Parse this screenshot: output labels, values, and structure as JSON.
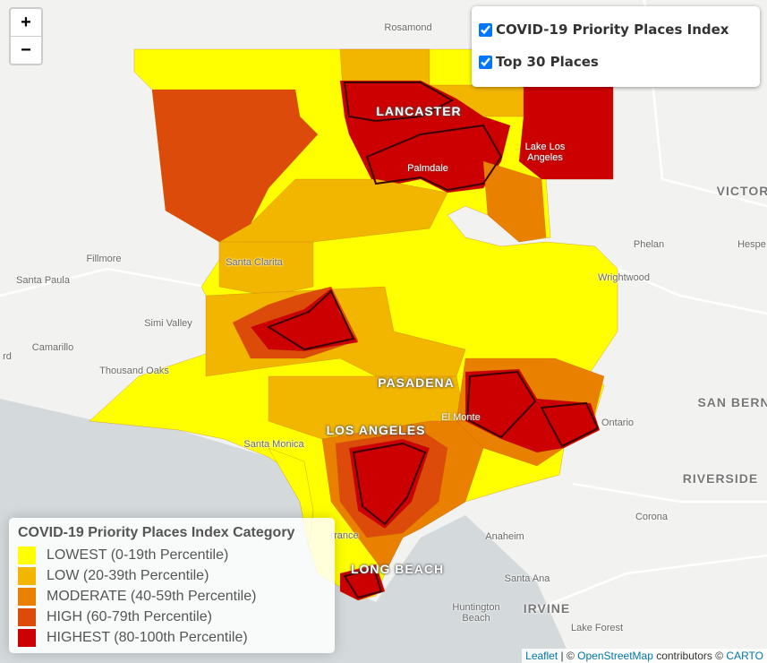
{
  "zoom_controls": [
    "+",
    "−"
  ],
  "layers": [
    {
      "label": "COVID-19 Priority Places Index",
      "checked": true
    },
    {
      "label": "Top 30 Places",
      "checked": true
    }
  ],
  "legend": {
    "title": "COVID-19 Priority Places Index Category",
    "items": [
      {
        "label": "LOWEST (0-19th Percentile)",
        "color": "#ffff00"
      },
      {
        "label": "LOW (20-39th Percentile)",
        "color": "#f2b600"
      },
      {
        "label": "MODERATE (40-59th Percentile)",
        "color": "#ea8000"
      },
      {
        "label": "HIGH (60-79th Percentile)",
        "color": "#dd4b0b"
      },
      {
        "label": "HIGHEST (80-100th Percentile)",
        "color": "#cc0000"
      }
    ]
  },
  "map_labels": [
    "Rosamond",
    "LANCASTER",
    "Palmdale",
    "Lake Los Angeles",
    "VICTOR",
    "Phelan",
    "Hespe",
    "Wrightwood",
    "Fillmore",
    "Santa Clarita",
    "Santa Paula",
    "Simi Valley",
    "Camarillo",
    "rd",
    "Thousand Oaks",
    "PASADENA",
    "El Monte",
    "Ontario",
    "SAN BERN",
    "LOS ANGELES",
    "Santa Monica",
    "RIVERSIDE",
    "Corona",
    "rrance",
    "Anaheim",
    "LONG BEACH",
    "Santa Ana",
    "Huntington Beach",
    "IRVINE",
    "Lake Forest"
  ],
  "attribution": [
    "Leaflet",
    " | © ",
    "OpenStreetMap",
    " contributors © ",
    "CARTO"
  ]
}
